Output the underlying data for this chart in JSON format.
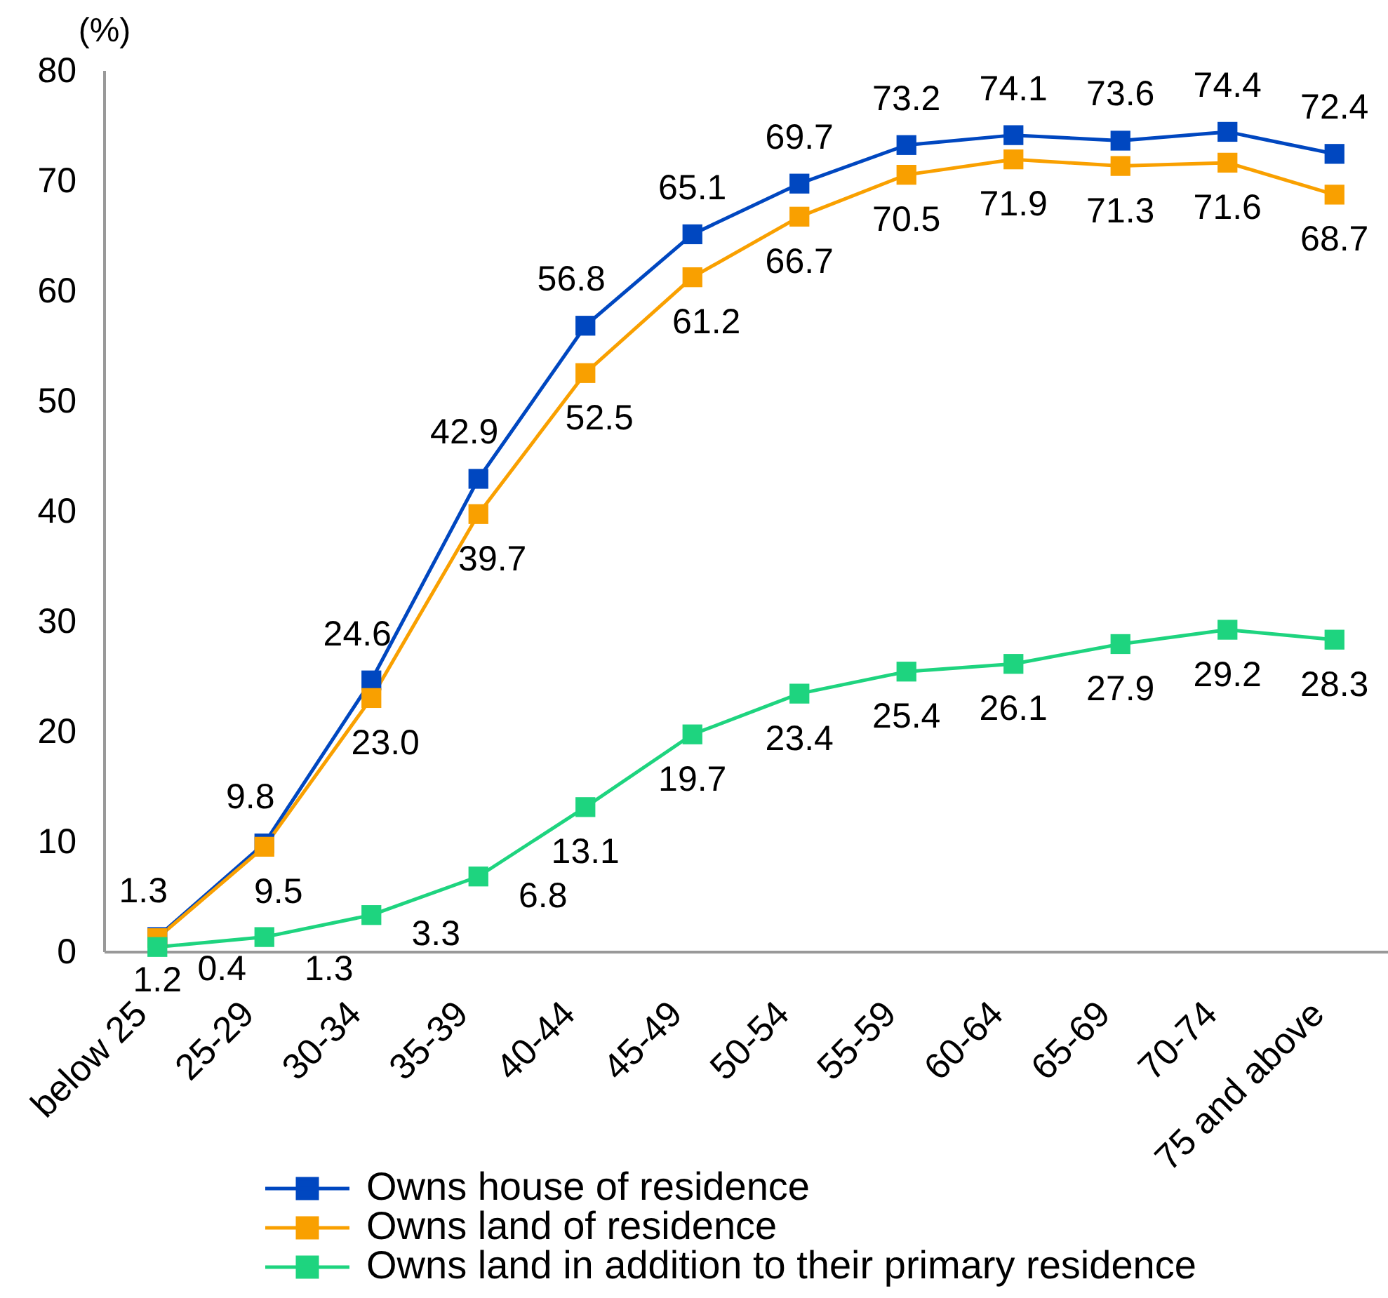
{
  "chart_data": {
    "type": "line",
    "ylabel": "(%)",
    "categories": [
      "below 25",
      "25-29",
      "30-34",
      "35-39",
      "40-44",
      "45-49",
      "50-54",
      "55-59",
      "60-64",
      "65-69",
      "70-74",
      "75 and above"
    ],
    "series": [
      {
        "name": "Owns house of residence",
        "color": "#0047c0",
        "values": [
          1.3,
          9.8,
          24.6,
          42.9,
          56.8,
          65.1,
          69.7,
          73.2,
          74.1,
          73.6,
          74.4,
          72.4
        ],
        "value_labels": [
          "1.3",
          "9.8",
          "24.6",
          "42.9",
          "56.8",
          "65.1",
          "69.7",
          "73.2",
          "74.1",
          "73.6",
          "74.4",
          "72.4"
        ]
      },
      {
        "name": "Owns land of residence",
        "color": "#f9a000",
        "values": [
          1.2,
          9.5,
          23.0,
          39.7,
          52.5,
          61.2,
          66.7,
          70.5,
          71.9,
          71.3,
          71.6,
          68.7
        ],
        "value_labels": [
          "1.2",
          "9.5",
          "23.0",
          "39.7",
          "52.5",
          "61.2",
          "66.7",
          "70.5",
          "71.9",
          "71.3",
          "71.6",
          "68.7"
        ]
      },
      {
        "name": "Owns land in addition to their primary residence",
        "color": "#1ed47f",
        "values": [
          0.4,
          1.3,
          3.3,
          6.8,
          13.1,
          19.7,
          23.4,
          25.4,
          26.1,
          27.9,
          29.2,
          28.3
        ],
        "value_labels": [
          "0.4",
          "1.3",
          "3.3",
          "6.8",
          "13.1",
          "19.7",
          "23.4",
          "25.4",
          "26.1",
          "27.9",
          "29.2",
          "28.3"
        ]
      }
    ],
    "ylim": [
      0,
      80
    ],
    "yticks": [
      0,
      10,
      20,
      30,
      40,
      50,
      60,
      70,
      80
    ],
    "legend": "bottom",
    "marker": "square",
    "line_style": "solid"
  }
}
